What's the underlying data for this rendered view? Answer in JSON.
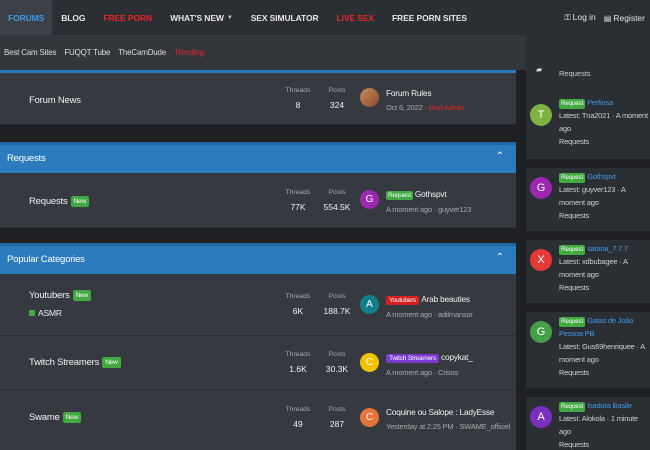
{
  "topnav": {
    "items": [
      {
        "label": "FORUMS",
        "style": "active"
      },
      {
        "label": "BLOG",
        "style": "normal"
      },
      {
        "label": "FREE PORN",
        "style": "red"
      },
      {
        "label": "WHAT'S NEW",
        "style": "caret"
      },
      {
        "label": "SEX SIMULATOR",
        "style": "normal"
      },
      {
        "label": "LIVE SEX",
        "style": "red"
      },
      {
        "label": "FREE PORN SITES",
        "style": "normal"
      }
    ],
    "login": "Log in",
    "register": "Register"
  },
  "subnav": {
    "items": [
      {
        "label": "Best Cam Sites",
        "style": "normal"
      },
      {
        "label": "FUQQT Tube",
        "style": "normal"
      },
      {
        "label": "TheCamDude",
        "style": "normal"
      },
      {
        "label": "Trending",
        "style": "red"
      }
    ]
  },
  "labels": {
    "threads": "Threads",
    "posts": "Posts"
  },
  "forums": {
    "news": {
      "title": "Forum News",
      "threads": "8",
      "posts": "324",
      "latest_title": "Forum Rules",
      "latest_date": "Oct 6, 2022",
      "latest_user": "Mod Admin"
    },
    "requests_cat": {
      "title": "Requests"
    },
    "requests": {
      "title": "Requests",
      "badge": "New",
      "threads": "77K",
      "posts": "554.5K",
      "avatar_letter": "G",
      "latest_tag": "Request",
      "latest_title": "Gothspvt",
      "latest_meta": "A moment ago · guyver123"
    },
    "popular_cat": {
      "title": "Popular Categories"
    },
    "youtubers": {
      "title": "Youtubers",
      "badge": "New",
      "subforum": "ASMR",
      "threads": "6K",
      "posts": "188.7K",
      "avatar_letter": "A",
      "latest_tag": "Youtubers",
      "latest_title": "Arab beauties",
      "latest_meta": "A moment ago · adilmansor"
    },
    "twitch": {
      "title": "Twitch Streamers",
      "badge": "New",
      "threads": "1.6K",
      "posts": "30.3K",
      "avatar_letter": "C",
      "latest_tag": "Twitch Streamers",
      "latest_title": "copykat_",
      "latest_meta": "A moment ago · Crisos"
    },
    "swame": {
      "title": "Swame",
      "badge": "New",
      "threads": "49",
      "posts": "287",
      "avatar_letter": "C",
      "latest_title": "Coquine ou Salope : LadyEsse",
      "latest_meta": "Yesterday at 2:25 PM · SWAME_officiel"
    }
  },
  "sidebar": {
    "top_forum": "Requests",
    "entries": [
      {
        "letter": "T",
        "color": "#7cb342",
        "tag": "Request",
        "title": "Perfiosa",
        "latest": "Latest: Tna2021 · A moment ago",
        "forum": "Requests"
      },
      {
        "letter": "G",
        "color": "#9c27b0",
        "tag": "Request",
        "title": "Gothspvt",
        "latest": "Latest: guyver123 · A moment ago",
        "forum": "Requests"
      },
      {
        "letter": "X",
        "color": "#e53935",
        "tag": "Request",
        "title": "satana_7.7.7",
        "latest": "Latest: xdbubagee · A moment ago",
        "forum": "Requests"
      },
      {
        "letter": "G",
        "color": "#43a047",
        "tag": "Request",
        "title": "Gatas de João Pessoa PB",
        "latest": "Latest: Gus69henriquee · A moment ago",
        "forum": "Requests"
      },
      {
        "letter": "A",
        "color": "#7b2fbe",
        "tag": "Request",
        "title": "Isadora Basile",
        "latest": "Latest: Alokola · 1 minute ago",
        "forum": "Requests"
      }
    ]
  },
  "colors": {
    "accent": "#2b7bbd",
    "link": "#3d9ae8",
    "red": "#e62525",
    "green": "#41a842"
  }
}
